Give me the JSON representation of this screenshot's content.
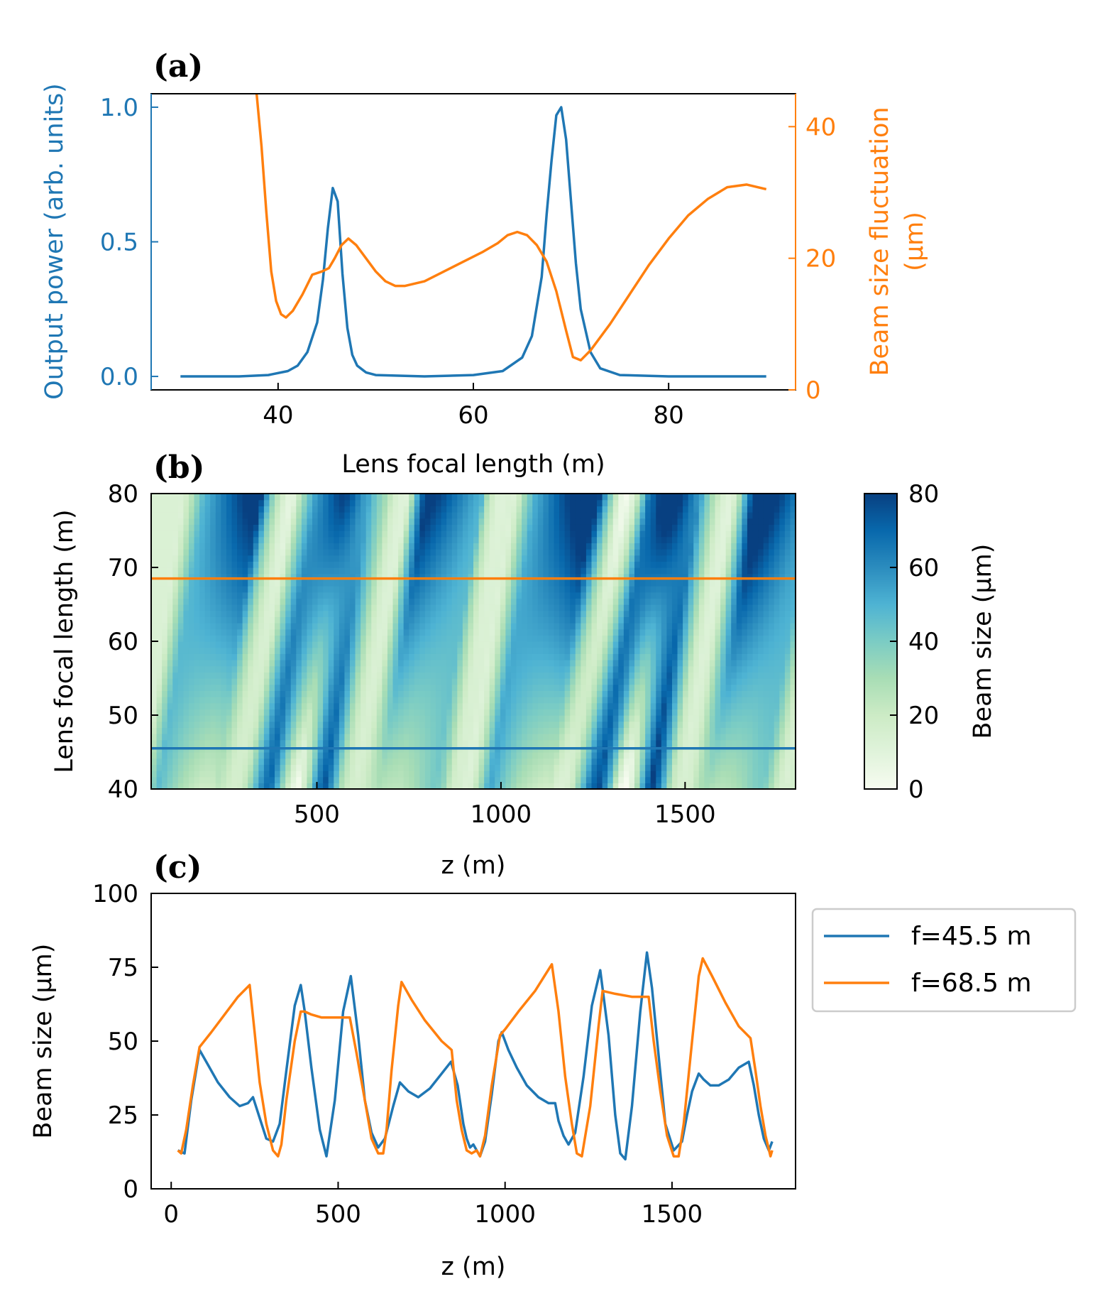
{
  "colors": {
    "blue": "#1f77b4",
    "orange": "#ff7f0e",
    "frame": "#000000"
  },
  "chart_data": [
    {
      "panel": "(a)",
      "type": "line",
      "xlabel": "Lens focal length (m)",
      "xlim": [
        27,
        93
      ],
      "xticks": [
        40,
        60,
        80
      ],
      "ylabel_left": "Output power (arb. units)",
      "ylim_left": [
        -0.05,
        1.05
      ],
      "yticks_left": [
        0.0,
        0.5,
        1.0
      ],
      "yticklabels_left": [
        "0.0",
        "0.5",
        "1.0"
      ],
      "ylabel_right_line1": "Beam size fluctuation",
      "ylabel_right_line2": "(μm)",
      "ylim_right": [
        0,
        45
      ],
      "yticks_right": [
        0,
        20,
        40
      ],
      "series": [
        {
          "name": "Output power",
          "axis": "left",
          "color": "#1f77b4",
          "x": [
            30,
            36,
            39,
            41,
            42,
            43,
            44,
            44.6,
            45.1,
            45.6,
            46.1,
            46.6,
            47.1,
            47.6,
            48.1,
            49,
            50,
            55,
            60,
            63,
            65,
            66,
            67,
            67.5,
            68,
            68.5,
            69,
            69.5,
            70,
            70.5,
            71,
            72,
            73,
            75,
            80,
            90
          ],
          "y": [
            0.0,
            0.0,
            0.005,
            0.02,
            0.04,
            0.09,
            0.2,
            0.36,
            0.55,
            0.7,
            0.65,
            0.38,
            0.18,
            0.08,
            0.04,
            0.015,
            0.005,
            0.0,
            0.005,
            0.02,
            0.07,
            0.15,
            0.37,
            0.6,
            0.8,
            0.97,
            1.0,
            0.88,
            0.65,
            0.42,
            0.25,
            0.09,
            0.03,
            0.005,
            0.0,
            0.0
          ]
        },
        {
          "name": "Beam size fluctuation",
          "axis": "right",
          "color": "#ff7f0e",
          "x": [
            37.8,
            38.3,
            38.8,
            39.3,
            39.8,
            40.3,
            40.8,
            41.5,
            42.5,
            43.5,
            44.5,
            45.2,
            45.8,
            46.5,
            47.2,
            48,
            49,
            50,
            51,
            52,
            53,
            55,
            57,
            59,
            61,
            62.5,
            63.5,
            64.5,
            65.5,
            66.5,
            67.5,
            68.5,
            69.5,
            70.2,
            71,
            72,
            74,
            76,
            78,
            80,
            82,
            84,
            86,
            88,
            90
          ],
          "y": [
            45,
            37,
            27,
            18,
            13.5,
            11.5,
            11,
            12,
            14.5,
            17.5,
            18,
            18.5,
            20,
            22,
            23,
            22,
            20,
            18,
            16.5,
            15.8,
            15.8,
            16.5,
            18,
            19.5,
            21,
            22.3,
            23.5,
            24,
            23.5,
            22,
            19.5,
            15,
            9,
            5,
            4.5,
            6,
            10,
            14.5,
            19,
            23,
            26.5,
            29,
            30.8,
            31.2,
            30.5
          ]
        }
      ]
    },
    {
      "panel": "(b)",
      "type": "heatmap",
      "xlabel": "z (m)",
      "ylabel": "Lens focal length (m)",
      "xlim": [
        50,
        1800
      ],
      "xticks": [
        500,
        1000,
        1500
      ],
      "ylim": [
        40,
        80
      ],
      "yticks": [
        40,
        50,
        60,
        70,
        80
      ],
      "colorbar_label": "Beam size (μm)",
      "colorbar_range": [
        0,
        80
      ],
      "colorbar_ticks": [
        0,
        20,
        40,
        60,
        80
      ],
      "colorscale": "GnBu",
      "colorscale_stops": [
        "#f7fcf0",
        "#e0f3db",
        "#ccebc5",
        "#a8ddb5",
        "#7bccc4",
        "#4eb3d3",
        "#2b8cbe",
        "#0868ac",
        "#084081"
      ],
      "lines": [
        {
          "f": 68.5,
          "color": "#ff7f0e"
        },
        {
          "f": 45.5,
          "color": "#1f77b4"
        }
      ]
    },
    {
      "panel": "(c)",
      "type": "line",
      "xlabel": "z (m)",
      "ylabel": "Beam size (μm)",
      "xlim": [
        -60,
        1870
      ],
      "xticks": [
        0,
        500,
        1000,
        1500
      ],
      "ylim": [
        0,
        100
      ],
      "yticks": [
        0,
        25,
        50,
        75,
        100
      ],
      "legend_position": "outside-right-top",
      "series": [
        {
          "name": "f=45.5 m",
          "color": "#1f77b4",
          "x": [
            20,
            40,
            60,
            85,
            110,
            140,
            175,
            205,
            230,
            245,
            265,
            285,
            305,
            325,
            345,
            370,
            388,
            400,
            420,
            445,
            465,
            490,
            515,
            538,
            560,
            580,
            600,
            620,
            640,
            665,
            685,
            710,
            740,
            775,
            810,
            838,
            858,
            875,
            885,
            895,
            905,
            915,
            925,
            940,
            960,
            980,
            990,
            1010,
            1035,
            1065,
            1100,
            1130,
            1150,
            1160,
            1175,
            1190,
            1210,
            1235,
            1260,
            1285,
            1310,
            1330,
            1345,
            1360,
            1380,
            1405,
            1425,
            1440,
            1460,
            1480,
            1505,
            1530,
            1545,
            1560,
            1580,
            1595,
            1615,
            1640,
            1670,
            1700,
            1730,
            1745,
            1760,
            1775,
            1790,
            1800
          ],
          "y": [
            13,
            12,
            30,
            47,
            42,
            36,
            31,
            28,
            29,
            31,
            24,
            17,
            16,
            22,
            40,
            62,
            69,
            60,
            41,
            20,
            11,
            30,
            60,
            72,
            52,
            30,
            19,
            14,
            17,
            28,
            36,
            33,
            31,
            34,
            39,
            43,
            35,
            22,
            17,
            14,
            15,
            13,
            11,
            16,
            32,
            50,
            53,
            47,
            41,
            35,
            31,
            29,
            29,
            23,
            18,
            15,
            19,
            38,
            62,
            74,
            52,
            25,
            12,
            10,
            28,
            60,
            80,
            68,
            45,
            22,
            13,
            16,
            25,
            33,
            39,
            37,
            35,
            35,
            37,
            41,
            43,
            35,
            25,
            17,
            13,
            16
          ]
        },
        {
          "name": "f=68.5 m",
          "color": "#ff7f0e",
          "x": [
            20,
            30,
            45,
            65,
            85,
            120,
            160,
            200,
            235,
            250,
            265,
            285,
            305,
            320,
            330,
            345,
            370,
            388,
            400,
            420,
            450,
            490,
            520,
            535,
            555,
            580,
            600,
            620,
            635,
            645,
            660,
            680,
            690,
            720,
            760,
            810,
            840,
            855,
            870,
            885,
            900,
            915,
            925,
            940,
            960,
            985,
            1000,
            1040,
            1090,
            1140,
            1160,
            1180,
            1200,
            1215,
            1230,
            1255,
            1280,
            1292,
            1330,
            1380,
            1430,
            1445,
            1465,
            1485,
            1505,
            1520,
            1535,
            1560,
            1580,
            1592,
            1620,
            1660,
            1700,
            1735,
            1750,
            1765,
            1780,
            1795,
            1800
          ],
          "y": [
            13,
            12,
            20,
            35,
            48,
            53,
            59,
            65,
            69,
            53,
            36,
            22,
            13,
            11,
            15,
            30,
            50,
            60,
            60,
            59,
            58,
            58,
            58,
            58,
            46,
            30,
            17,
            12,
            12,
            20,
            40,
            62,
            70,
            64,
            57,
            50,
            47,
            30,
            20,
            13,
            12,
            13,
            11,
            18,
            35,
            52,
            54,
            60,
            67,
            76,
            60,
            38,
            22,
            12,
            11,
            28,
            55,
            67,
            66,
            65,
            65,
            50,
            33,
            18,
            11,
            11,
            22,
            50,
            72,
            78,
            72,
            63,
            55,
            51,
            40,
            28,
            18,
            11,
            13
          ]
        }
      ]
    }
  ]
}
